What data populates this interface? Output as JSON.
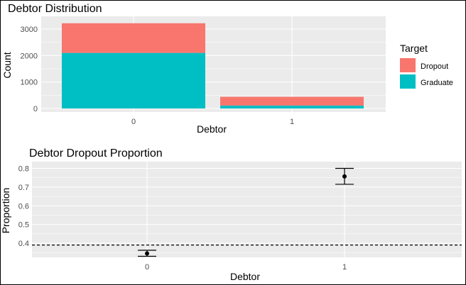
{
  "charts": [
    {
      "type": "bar",
      "stacked": true,
      "title": "Debtor Distribution",
      "xlabel": "Debtor",
      "ylabel": "Count",
      "categories": [
        "0",
        "1"
      ],
      "yticks": [
        "0",
        "1000",
        "2000",
        "3000"
      ],
      "ylim": [
        0,
        3400
      ],
      "grid": true,
      "legend": {
        "title": "Target",
        "position": "right",
        "entries": [
          {
            "name": "Dropout",
            "color": "#F8766D"
          },
          {
            "name": "Graduate",
            "color": "#00BFC4"
          }
        ]
      },
      "series": [
        {
          "name": "Graduate",
          "values": [
            2100,
            110
          ],
          "color": "#00BFC4"
        },
        {
          "name": "Dropout",
          "values": [
            1120,
            330
          ],
          "color": "#F8766D"
        }
      ]
    },
    {
      "type": "scatter",
      "title": "Debtor Dropout Proportion",
      "xlabel": "Debtor",
      "ylabel": "Proportion",
      "categories": [
        "0",
        "1"
      ],
      "yticks": [
        "0.4",
        "0.5",
        "0.6",
        "0.7",
        "0.8"
      ],
      "ylim": [
        0.3,
        0.82
      ],
      "grid": true,
      "points": [
        {
          "x": "0",
          "y": 0.345,
          "lower": 0.33,
          "upper": 0.362
        },
        {
          "x": "1",
          "y": 0.757,
          "lower": 0.715,
          "upper": 0.8
        }
      ],
      "reference_line": {
        "y": 0.39,
        "style": "dashed"
      }
    }
  ],
  "colors": {
    "panel": "#EBEBEB",
    "grid": "#FFFFFF",
    "point": "#000000"
  }
}
